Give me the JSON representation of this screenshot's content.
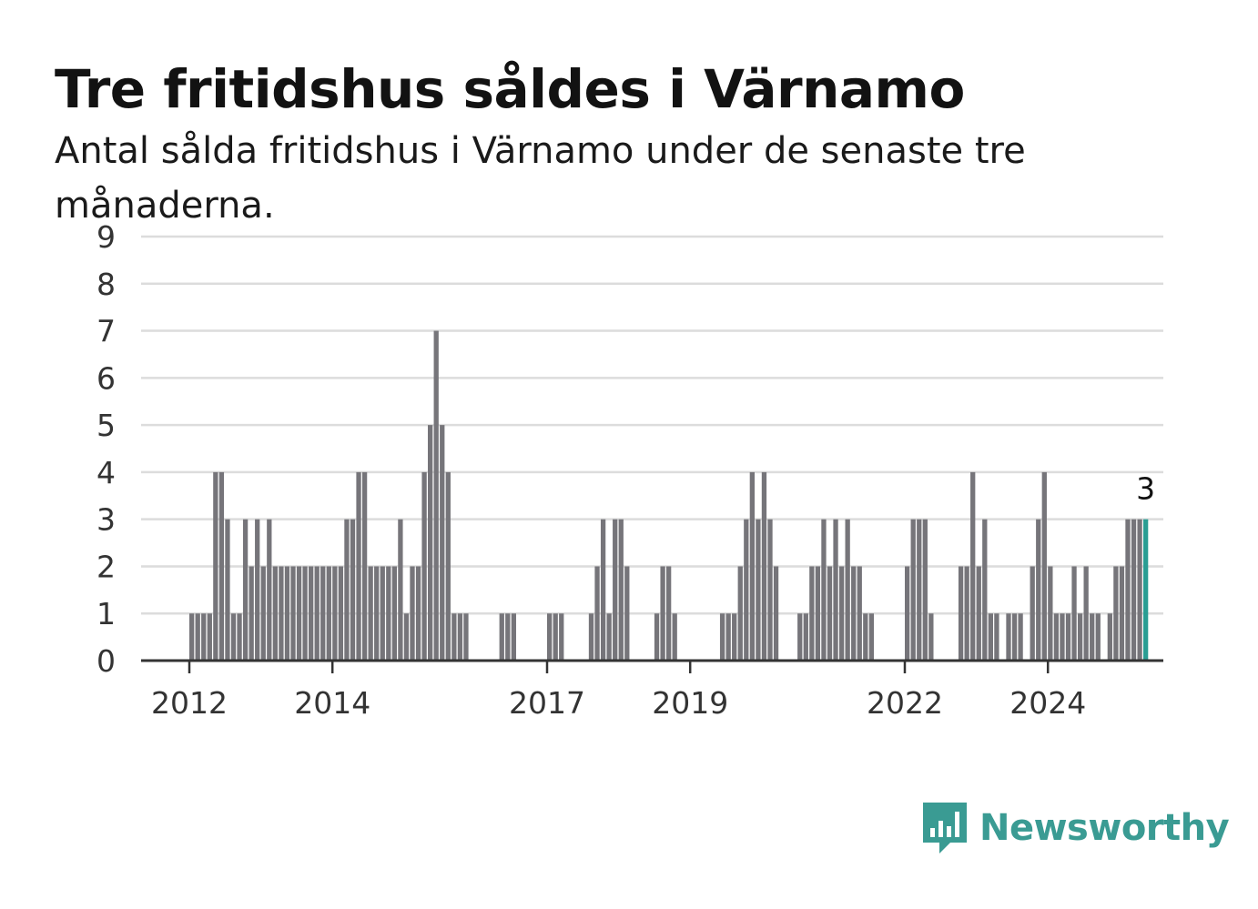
{
  "header": {
    "title": "Tre fritidshus såldes i Värnamo",
    "subtitle": "Antal sålda fritidshus i Värnamo under de senaste tre månaderna."
  },
  "brand": {
    "name": "Newsworthy",
    "color": "#3a9b93",
    "icon": "bar-chart-speech-bubble-icon"
  },
  "chart_data": {
    "type": "bar",
    "start": "2012-01",
    "ylim": [
      0,
      9
    ],
    "yticks": [
      0,
      1,
      2,
      3,
      4,
      5,
      6,
      7,
      8,
      9
    ],
    "xticks": [
      {
        "label": "2012",
        "month": "2012-01"
      },
      {
        "label": "2014",
        "month": "2014-01"
      },
      {
        "label": "2017",
        "month": "2017-01"
      },
      {
        "label": "2019",
        "month": "2019-01"
      },
      {
        "label": "2022",
        "month": "2022-01"
      },
      {
        "label": "2024",
        "month": "2024-01"
      }
    ],
    "values": [
      1,
      1,
      1,
      1,
      4,
      4,
      3,
      1,
      1,
      3,
      2,
      3,
      2,
      3,
      2,
      2,
      2,
      2,
      2,
      2,
      2,
      2,
      2,
      2,
      2,
      2,
      3,
      3,
      4,
      4,
      2,
      2,
      2,
      2,
      2,
      3,
      1,
      2,
      2,
      4,
      5,
      7,
      5,
      4,
      1,
      1,
      1,
      0,
      0,
      0,
      0,
      0,
      1,
      1,
      1,
      0,
      0,
      0,
      0,
      0,
      1,
      1,
      1,
      0,
      0,
      0,
      0,
      1,
      2,
      3,
      1,
      3,
      3,
      2,
      0,
      0,
      0,
      0,
      1,
      2,
      2,
      1,
      0,
      0,
      0,
      0,
      0,
      0,
      0,
      1,
      1,
      1,
      2,
      3,
      4,
      3,
      4,
      3,
      2,
      0,
      0,
      0,
      1,
      1,
      2,
      2,
      3,
      2,
      3,
      2,
      3,
      2,
      2,
      1,
      1,
      0,
      0,
      0,
      0,
      0,
      2,
      3,
      3,
      3,
      1,
      0,
      0,
      0,
      0,
      2,
      2,
      4,
      2,
      3,
      1,
      1,
      0,
      1,
      1,
      1,
      0,
      2,
      3,
      4,
      2,
      1,
      1,
      1,
      2,
      1,
      2,
      1,
      1,
      0,
      1,
      2,
      2,
      3,
      3,
      3,
      3
    ],
    "bar_color": "#76757a",
    "highlight_color": "#2a9d93",
    "highlight_last": true,
    "last_label": "3",
    "grid": true
  }
}
